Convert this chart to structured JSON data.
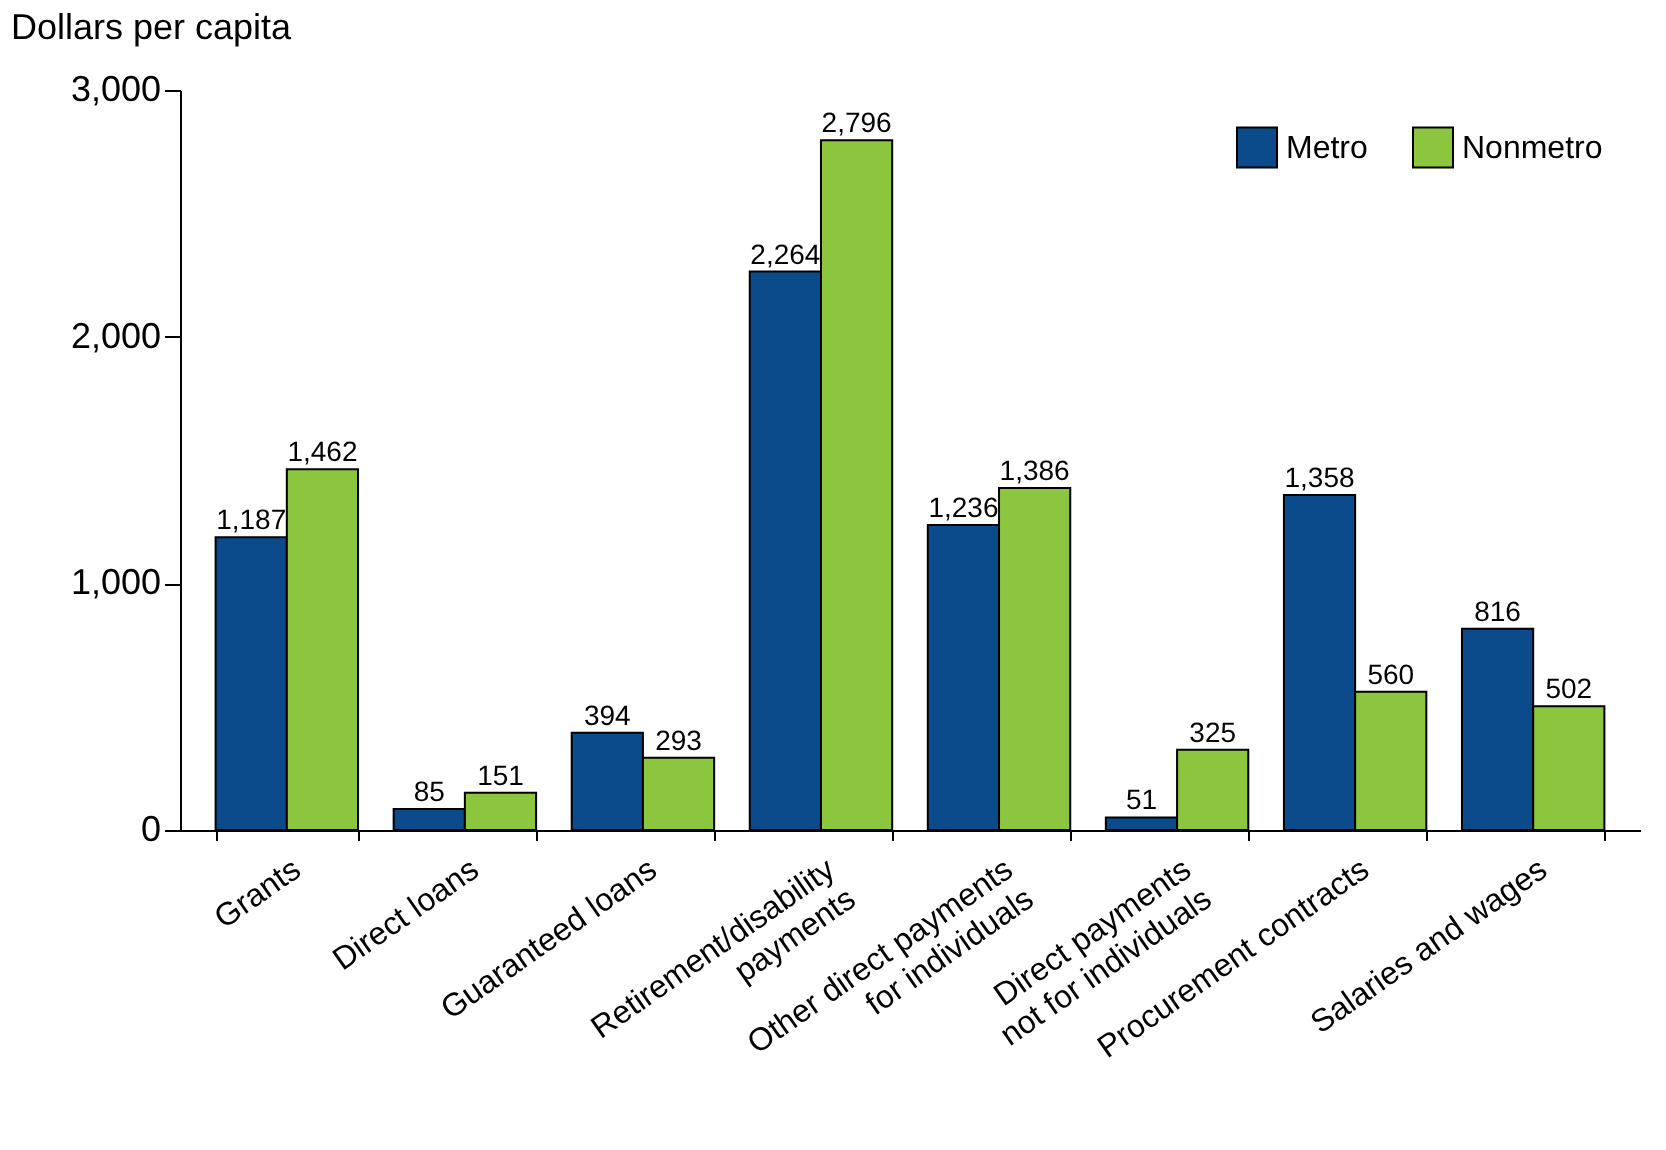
{
  "chart_data": {
    "type": "bar",
    "ylabel": "Dollars per capita",
    "categories": [
      "Grants",
      "Direct loans",
      "Guaranteed loans",
      "Retirement/disability\npayments",
      "Other direct payments\nfor individuals",
      "Direct payments\nnot for individuals",
      "Procurement contracts",
      "Salaries and wages"
    ],
    "series": [
      {
        "name": "Metro",
        "color": "#0b4a8b",
        "values": [
          1187,
          85,
          394,
          2264,
          1236,
          51,
          1358,
          816
        ],
        "value_labels": [
          "1,187",
          "85",
          "394",
          "2,264",
          "1,236",
          "51",
          "1,358",
          "816"
        ]
      },
      {
        "name": "Nonmetro",
        "color": "#8cc63e",
        "values": [
          1462,
          151,
          293,
          2796,
          1386,
          325,
          560,
          502
        ],
        "value_labels": [
          "1,462",
          "151",
          "293",
          "2,796",
          "1,386",
          "325",
          "560",
          "502"
        ]
      }
    ],
    "ylim": [
      0,
      3000
    ],
    "yticks": [
      0,
      {
        "value": 1000,
        "label": "1,000"
      },
      {
        "value": 2000,
        "label": "2,000"
      },
      {
        "value": 3000,
        "label": "3,000"
      }
    ],
    "grid": false,
    "legend": "top right"
  }
}
